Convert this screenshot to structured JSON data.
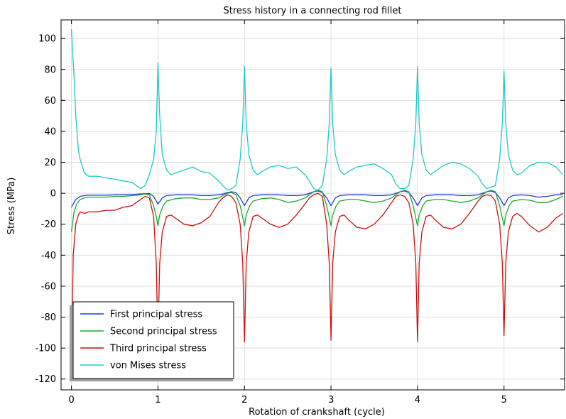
{
  "chart_data": {
    "type": "line",
    "title": "Stress history in a connecting rod fillet",
    "xlabel": "Rotation of crankshaft (cycle)",
    "ylabel": "Stress (MPa)",
    "xlim": [
      -0.12,
      5.7
    ],
    "ylim": [
      -127,
      112
    ],
    "x_ticks": [
      0,
      1,
      2,
      3,
      4,
      5
    ],
    "y_ticks": [
      100,
      80,
      60,
      40,
      20,
      0,
      -20,
      -40,
      -60,
      -80,
      -100,
      -120
    ],
    "grid": true,
    "legend_position": "bottom-left",
    "series": [
      {
        "name": "First principal stress",
        "color": "#1f3bd6",
        "x": [
          0,
          0.05,
          0.1,
          0.15,
          0.2,
          0.3,
          0.4,
          0.5,
          0.6,
          0.7,
          0.8,
          0.85,
          0.9,
          0.95,
          0.98,
          1.0,
          1.05,
          1.1,
          1.2,
          1.3,
          1.4,
          1.5,
          1.6,
          1.7,
          1.75,
          1.8,
          1.85,
          1.9,
          1.95,
          2.0,
          2.05,
          2.1,
          2.2,
          2.3,
          2.4,
          2.5,
          2.6,
          2.7,
          2.75,
          2.8,
          2.85,
          2.9,
          2.95,
          3.0,
          3.05,
          3.1,
          3.2,
          3.3,
          3.4,
          3.5,
          3.6,
          3.7,
          3.75,
          3.8,
          3.85,
          3.9,
          3.95,
          4.0,
          4.05,
          4.1,
          4.2,
          4.3,
          4.4,
          4.5,
          4.6,
          4.7,
          4.75,
          4.8,
          4.85,
          4.9,
          4.95,
          5.0,
          5.05,
          5.1,
          5.2,
          5.3,
          5.4,
          5.5,
          5.6,
          5.68
        ],
        "values": [
          -9,
          -4,
          -2,
          -1.5,
          -1.2,
          -1.2,
          -1.2,
          -1,
          -1,
          -0.8,
          -0.5,
          -0.3,
          -0.2,
          -2,
          -5,
          -7,
          -3,
          -1.5,
          -1,
          -1,
          -1,
          -1.5,
          -1.5,
          -1,
          -0.5,
          0.5,
          1,
          0.5,
          -3,
          -8,
          -3,
          -1.5,
          -1,
          -1,
          -1,
          -1.5,
          -1.5,
          -1,
          0,
          1,
          1.5,
          0.5,
          -3,
          -8,
          -3,
          -1.5,
          -1,
          -1,
          -1,
          -1.5,
          -1.5,
          -1,
          0,
          1,
          1.5,
          0.5,
          -3,
          -8,
          -3,
          -1.5,
          -1,
          -1,
          -1,
          -1.5,
          -1.5,
          -1,
          0,
          1,
          1.5,
          0.5,
          -3,
          -8,
          -3,
          -1.5,
          -1,
          -1.5,
          -2.5,
          -2,
          -1,
          -1
        ]
      },
      {
        "name": "Second principal stress",
        "color": "#18a830",
        "x": [
          0,
          0.03,
          0.06,
          0.1,
          0.15,
          0.2,
          0.3,
          0.4,
          0.5,
          0.6,
          0.7,
          0.8,
          0.85,
          0.9,
          0.95,
          0.98,
          1.0,
          1.02,
          1.06,
          1.1,
          1.2,
          1.3,
          1.4,
          1.5,
          1.6,
          1.7,
          1.75,
          1.8,
          1.85,
          1.9,
          1.95,
          2.0,
          2.02,
          2.06,
          2.1,
          2.2,
          2.3,
          2.4,
          2.5,
          2.6,
          2.7,
          2.75,
          2.8,
          2.85,
          2.9,
          2.95,
          3.0,
          3.02,
          3.06,
          3.1,
          3.2,
          3.3,
          3.4,
          3.5,
          3.6,
          3.7,
          3.75,
          3.8,
          3.85,
          3.9,
          3.95,
          4.0,
          4.02,
          4.06,
          4.1,
          4.2,
          4.3,
          4.4,
          4.5,
          4.6,
          4.7,
          4.75,
          4.8,
          4.85,
          4.9,
          4.95,
          5.0,
          5.02,
          5.06,
          5.1,
          5.2,
          5.3,
          5.4,
          5.5,
          5.6,
          5.68
        ],
        "values": [
          -25,
          -12,
          -7,
          -4,
          -3,
          -2.5,
          -2.5,
          -2.5,
          -2,
          -2,
          -1.5,
          -1,
          -0.5,
          -1,
          -8,
          -15,
          -21,
          -14,
          -8,
          -5,
          -3.5,
          -3,
          -3,
          -4,
          -4,
          -3,
          -1.5,
          0,
          0.5,
          -1,
          -8,
          -21,
          -14,
          -8,
          -5,
          -3.5,
          -3,
          -4,
          -6,
          -5,
          -3,
          -1,
          1,
          2,
          1,
          -8,
          -21,
          -14,
          -8,
          -5,
          -4,
          -4,
          -5,
          -6,
          -5,
          -3,
          -1,
          1,
          2,
          1,
          -8,
          -21,
          -14,
          -8,
          -5,
          -4,
          -4,
          -5,
          -6,
          -5,
          -3,
          -1,
          1,
          2,
          1,
          -8,
          -21,
          -14,
          -8,
          -5,
          -4,
          -4.5,
          -6,
          -6,
          -4,
          -2
        ]
      },
      {
        "name": "Third principal stress",
        "color": "#cc1010",
        "x": [
          0,
          0.02,
          0.05,
          0.08,
          0.1,
          0.15,
          0.2,
          0.3,
          0.4,
          0.5,
          0.6,
          0.7,
          0.75,
          0.8,
          0.85,
          0.9,
          0.95,
          0.98,
          1.0,
          1.02,
          1.05,
          1.1,
          1.15,
          1.2,
          1.3,
          1.4,
          1.5,
          1.6,
          1.7,
          1.75,
          1.8,
          1.85,
          1.9,
          1.95,
          1.98,
          2.0,
          2.02,
          2.05,
          2.1,
          2.15,
          2.2,
          2.3,
          2.4,
          2.5,
          2.6,
          2.7,
          2.75,
          2.8,
          2.85,
          2.9,
          2.95,
          2.98,
          3.0,
          3.02,
          3.05,
          3.1,
          3.15,
          3.2,
          3.3,
          3.4,
          3.5,
          3.6,
          3.7,
          3.75,
          3.8,
          3.85,
          3.9,
          3.95,
          3.98,
          4.0,
          4.02,
          4.05,
          4.1,
          4.15,
          4.2,
          4.3,
          4.4,
          4.5,
          4.6,
          4.7,
          4.75,
          4.8,
          4.85,
          4.9,
          4.95,
          4.98,
          5.0,
          5.02,
          5.05,
          5.1,
          5.15,
          5.2,
          5.3,
          5.4,
          5.5,
          5.6,
          5.68
        ],
        "values": [
          -120,
          -40,
          -20,
          -14,
          -12,
          -13,
          -12,
          -12,
          -11,
          -11,
          -9,
          -8,
          -6,
          -4,
          -2,
          -3,
          -15,
          -45,
          -96,
          -45,
          -25,
          -15,
          -14,
          -16,
          -20,
          -21,
          -19,
          -15,
          -6,
          -3,
          -1,
          -2,
          -6,
          -20,
          -45,
          -96,
          -45,
          -25,
          -15,
          -14,
          -16,
          -20,
          -22,
          -20,
          -14,
          -7,
          -3,
          -1,
          0,
          -2,
          -20,
          -45,
          -95,
          -45,
          -25,
          -15,
          -14,
          -17,
          -22,
          -23,
          -20,
          -14,
          -6,
          -2,
          -1,
          -2,
          -6,
          -20,
          -45,
          -96,
          -45,
          -25,
          -15,
          -14,
          -17,
          -22,
          -23,
          -20,
          -13,
          -5,
          -2,
          -1,
          -1.5,
          -5,
          -20,
          -45,
          -92,
          -45,
          -25,
          -15,
          -13,
          -15,
          -21,
          -25,
          -22,
          -16,
          -13
        ]
      },
      {
        "name": "von Mises stress",
        "color": "#1ec8c8",
        "x": [
          0,
          0.01,
          0.03,
          0.05,
          0.08,
          0.1,
          0.15,
          0.2,
          0.3,
          0.4,
          0.5,
          0.6,
          0.7,
          0.75,
          0.8,
          0.85,
          0.9,
          0.95,
          0.98,
          1.0,
          1.02,
          1.05,
          1.1,
          1.15,
          1.2,
          1.3,
          1.4,
          1.5,
          1.6,
          1.7,
          1.75,
          1.8,
          1.85,
          1.9,
          1.95,
          1.98,
          2.0,
          2.02,
          2.05,
          2.1,
          2.15,
          2.2,
          2.3,
          2.4,
          2.5,
          2.6,
          2.7,
          2.75,
          2.8,
          2.85,
          2.9,
          2.95,
          2.98,
          3.0,
          3.02,
          3.05,
          3.1,
          3.15,
          3.2,
          3.3,
          3.4,
          3.5,
          3.6,
          3.7,
          3.75,
          3.8,
          3.85,
          3.9,
          3.95,
          3.98,
          4.0,
          4.02,
          4.05,
          4.1,
          4.15,
          4.2,
          4.3,
          4.4,
          4.5,
          4.6,
          4.7,
          4.75,
          4.8,
          4.85,
          4.9,
          4.95,
          4.98,
          5.0,
          5.02,
          5.05,
          5.1,
          5.15,
          5.2,
          5.3,
          5.4,
          5.5,
          5.6,
          5.68
        ],
        "values": [
          106,
          96,
          75,
          50,
          28,
          22,
          13,
          11,
          11,
          10,
          9,
          8,
          7,
          5,
          3,
          5,
          12,
          22,
          40,
          84,
          50,
          25,
          15,
          12,
          13,
          15,
          17,
          14,
          13,
          8,
          5,
          2,
          3,
          5,
          22,
          45,
          82,
          45,
          25,
          15,
          12,
          14,
          17,
          18,
          16,
          17,
          12,
          8,
          3,
          2,
          5,
          22,
          45,
          81,
          45,
          25,
          15,
          12,
          14,
          17,
          18,
          19,
          16,
          12,
          6,
          3,
          3,
          5,
          22,
          45,
          82,
          45,
          25,
          15,
          12,
          14,
          18,
          20,
          19,
          16,
          11,
          6,
          3,
          4,
          5,
          22,
          45,
          79,
          45,
          25,
          15,
          12,
          13,
          18,
          20,
          20,
          17,
          12
        ]
      }
    ]
  }
}
